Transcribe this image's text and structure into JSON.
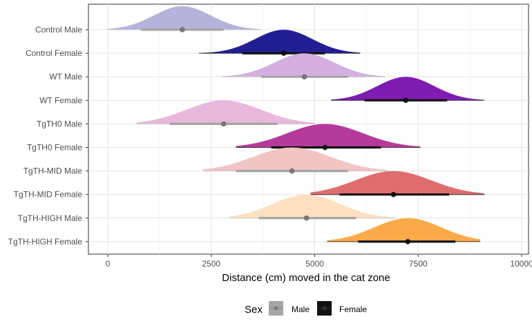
{
  "chart_data": {
    "type": "halfeye",
    "xlabel": "Distance (cm) moved in the cat zone",
    "ylabel": "",
    "xlim": [
      -500,
      10000
    ],
    "xticks": [
      0,
      2500,
      5000,
      7500,
      10000
    ],
    "xtick_labels": [
      "0",
      "2500",
      "5000",
      "7500",
      "10000"
    ],
    "grid": true,
    "legend": {
      "title": "Sex",
      "position": "bottom",
      "items": [
        {
          "label": "Male",
          "color": "#a6a6a6"
        },
        {
          "label": "Female",
          "color": "#111111"
        }
      ]
    },
    "groups": [
      {
        "label": "Control Male",
        "sex": "Male",
        "median": 1800,
        "interval": [
          800,
          2800
        ],
        "range": [
          0,
          3700
        ],
        "color": "#b3b3dc"
      },
      {
        "label": "Control Female",
        "sex": "Female",
        "median": 4250,
        "interval": [
          3250,
          5250
        ],
        "range": [
          2200,
          6100
        ],
        "color": "#221e94"
      },
      {
        "label": "WT Male",
        "sex": "Male",
        "median": 4750,
        "interval": [
          3700,
          5800
        ],
        "range": [
          2750,
          6700
        ],
        "color": "#d4b0e0"
      },
      {
        "label": "WT Female",
        "sex": "Female",
        "median": 7200,
        "interval": [
          6200,
          8200
        ],
        "range": [
          5400,
          9100
        ],
        "color": "#7f1cb2"
      },
      {
        "label": "TgTH0 Male",
        "sex": "Male",
        "median": 2800,
        "interval": [
          1500,
          4100
        ],
        "range": [
          700,
          5000
        ],
        "color": "#e8b8da"
      },
      {
        "label": "TgTH0 Female",
        "sex": "Female",
        "median": 5250,
        "interval": [
          3950,
          6600
        ],
        "range": [
          3100,
          7550
        ],
        "color": "#b63a9c"
      },
      {
        "label": "TgTH-MID Male",
        "sex": "Male",
        "median": 4450,
        "interval": [
          3100,
          5800
        ],
        "range": [
          2300,
          6750
        ],
        "color": "#f2c4c4"
      },
      {
        "label": "TgTH-MID Female",
        "sex": "Female",
        "median": 6900,
        "interval": [
          5600,
          8250
        ],
        "range": [
          4900,
          9100
        ],
        "color": "#e06d6d"
      },
      {
        "label": "TgTH-HIGH Male",
        "sex": "Male",
        "median": 4800,
        "interval": [
          3650,
          6000
        ],
        "range": [
          2950,
          6950
        ],
        "color": "#fde0bf"
      },
      {
        "label": "TgTH-HIGH Female",
        "sex": "Female",
        "median": 7250,
        "interval": [
          6050,
          8400
        ],
        "range": [
          5300,
          9000
        ],
        "color": "#fbaa4a"
      }
    ]
  }
}
